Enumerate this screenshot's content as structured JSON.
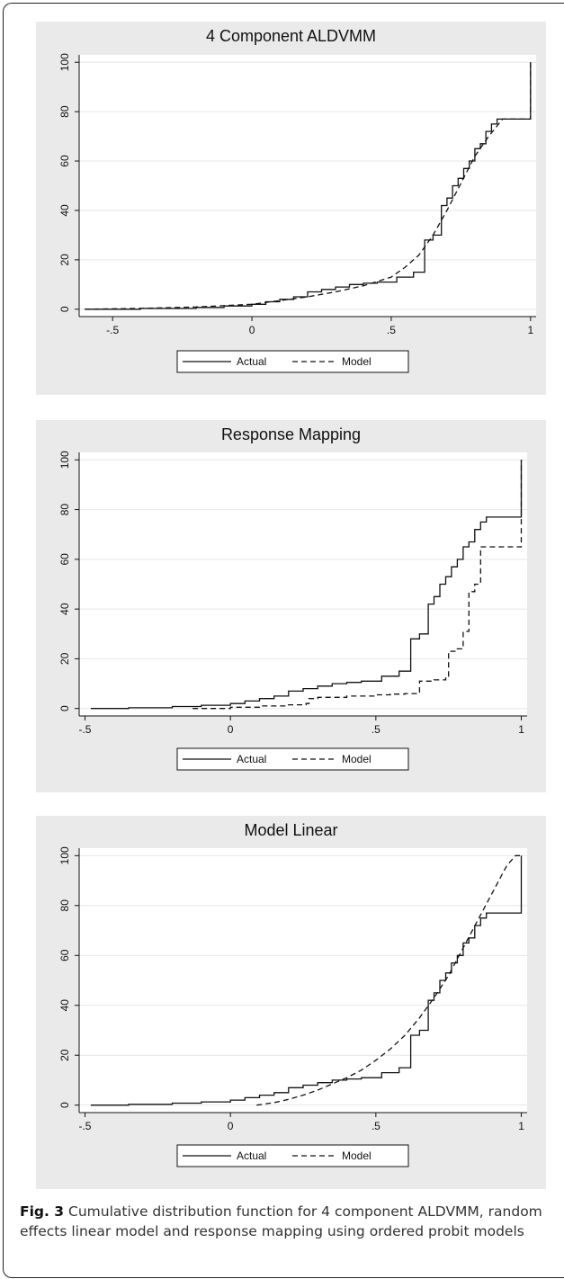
{
  "figure": {
    "caption_label": "Fig. 3",
    "caption_text": "Cumulative distribution function for 4 component ALDVMM, random effects linear model and response mapping using ordered probit models"
  },
  "chart_data": [
    {
      "type": "line",
      "title": "4 Component ALDVMM",
      "xlabel": "",
      "ylabel": "",
      "xlim": [
        -0.62,
        1.02
      ],
      "ylim": [
        -3,
        103
      ],
      "xticks": [
        -0.5,
        0,
        0.5,
        1
      ],
      "xtick_labels": [
        "-.5",
        "0",
        ".5",
        "1"
      ],
      "yticks": [
        0,
        20,
        40,
        60,
        80,
        100
      ],
      "ytick_labels": [
        "0",
        "20",
        "40",
        "60",
        "80",
        "100"
      ],
      "grid": "horizontal",
      "legend": {
        "placement": "bottom"
      },
      "series": [
        {
          "name": "Actual",
          "style": "solid",
          "step": true,
          "x": [
            -0.6,
            -0.4,
            -0.2,
            -0.1,
            0.0,
            0.05,
            0.1,
            0.15,
            0.2,
            0.25,
            0.3,
            0.35,
            0.4,
            0.45,
            0.5,
            0.52,
            0.58,
            0.6,
            0.62,
            0.65,
            0.68,
            0.7,
            0.72,
            0.74,
            0.76,
            0.78,
            0.8,
            0.82,
            0.84,
            0.86,
            0.88,
            0.9,
            1.0,
            1.0
          ],
          "y": [
            0,
            0.3,
            0.7,
            1.3,
            2,
            3,
            4,
            5,
            7,
            8,
            9,
            10,
            10.5,
            11,
            11,
            13,
            15,
            15,
            28,
            30,
            42,
            45,
            50,
            53,
            57,
            60,
            65,
            67,
            72,
            75,
            77,
            77,
            77,
            100
          ]
        },
        {
          "name": "Model",
          "style": "dashed",
          "step": false,
          "x": [
            -0.6,
            -0.4,
            -0.2,
            0.0,
            0.1,
            0.2,
            0.3,
            0.4,
            0.5,
            0.55,
            0.6,
            0.65,
            0.7,
            0.75,
            0.8,
            0.85,
            0.9,
            1.0,
            1.0
          ],
          "y": [
            0,
            0.3,
            0.9,
            2,
            3.5,
            5,
            7,
            9.5,
            13,
            17,
            22,
            30,
            40,
            51,
            62,
            70,
            77,
            77,
            100
          ]
        }
      ]
    },
    {
      "type": "line",
      "title": "Response Mapping",
      "xlabel": "",
      "ylabel": "",
      "xlim": [
        -0.52,
        1.02
      ],
      "ylim": [
        -3,
        103
      ],
      "xticks": [
        -0.5,
        0,
        0.5,
        1
      ],
      "xtick_labels": [
        "-.5",
        "0",
        ".5",
        "1"
      ],
      "yticks": [
        0,
        20,
        40,
        60,
        80,
        100
      ],
      "ytick_labels": [
        "0",
        "20",
        "40",
        "60",
        "80",
        "100"
      ],
      "grid": "horizontal",
      "legend": {
        "placement": "bottom"
      },
      "series": [
        {
          "name": "Actual",
          "style": "solid",
          "step": true,
          "x": [
            -0.48,
            -0.35,
            -0.2,
            -0.1,
            0.0,
            0.05,
            0.1,
            0.15,
            0.2,
            0.25,
            0.3,
            0.35,
            0.4,
            0.45,
            0.5,
            0.52,
            0.58,
            0.6,
            0.62,
            0.65,
            0.68,
            0.7,
            0.72,
            0.74,
            0.76,
            0.78,
            0.8,
            0.82,
            0.84,
            0.86,
            0.88,
            0.9,
            1.0,
            1.0
          ],
          "y": [
            0,
            0.3,
            0.8,
            1.3,
            2,
            3,
            4,
            5,
            7,
            8,
            9,
            10,
            10.5,
            11,
            11,
            13,
            15,
            15,
            28,
            30,
            42,
            45,
            50,
            53,
            57,
            60,
            65,
            67,
            72,
            75,
            77,
            77,
            77,
            100
          ]
        },
        {
          "name": "Model",
          "style": "dashed",
          "step": true,
          "x": [
            -0.13,
            0.0,
            0.1,
            0.2,
            0.26,
            0.27,
            0.3,
            0.4,
            0.5,
            0.55,
            0.6,
            0.64,
            0.65,
            0.7,
            0.74,
            0.75,
            0.78,
            0.8,
            0.82,
            0.84,
            0.86,
            1.0,
            1.0
          ],
          "y": [
            0,
            0.5,
            1,
            1.5,
            2,
            4,
            4.5,
            5,
            5.5,
            5.8,
            6,
            6,
            11,
            11.5,
            13,
            23,
            24,
            31,
            47,
            50,
            65,
            65,
            100
          ]
        }
      ]
    },
    {
      "type": "line",
      "title": "Model Linear",
      "xlabel": "",
      "ylabel": "",
      "xlim": [
        -0.52,
        1.02
      ],
      "ylim": [
        -3,
        103
      ],
      "xticks": [
        -0.5,
        0,
        0.5,
        1
      ],
      "xtick_labels": [
        "-.5",
        "0",
        ".5",
        "1"
      ],
      "yticks": [
        0,
        20,
        40,
        60,
        80,
        100
      ],
      "ytick_labels": [
        "0",
        "20",
        "40",
        "60",
        "80",
        "100"
      ],
      "grid": "horizontal",
      "legend": {
        "placement": "bottom"
      },
      "series": [
        {
          "name": "Actual",
          "style": "solid",
          "step": true,
          "x": [
            -0.48,
            -0.35,
            -0.2,
            -0.1,
            0.0,
            0.05,
            0.1,
            0.15,
            0.2,
            0.25,
            0.3,
            0.35,
            0.4,
            0.45,
            0.5,
            0.52,
            0.58,
            0.6,
            0.62,
            0.65,
            0.68,
            0.7,
            0.72,
            0.74,
            0.76,
            0.78,
            0.8,
            0.82,
            0.84,
            0.86,
            0.88,
            0.9,
            1.0,
            1.0
          ],
          "y": [
            0,
            0.3,
            0.8,
            1.3,
            2,
            3,
            4,
            5,
            7,
            8,
            9,
            10,
            10.5,
            11,
            11,
            13,
            15,
            15,
            28,
            30,
            42,
            45,
            50,
            53,
            57,
            60,
            65,
            67,
            72,
            75,
            77,
            77,
            77,
            100
          ]
        },
        {
          "name": "Model",
          "style": "dashed",
          "step": false,
          "x": [
            0.09,
            0.15,
            0.2,
            0.25,
            0.3,
            0.35,
            0.4,
            0.45,
            0.5,
            0.55,
            0.6,
            0.65,
            0.7,
            0.75,
            0.8,
            0.85,
            0.9,
            0.95,
            0.98,
            1.0
          ],
          "y": [
            0,
            1,
            2.3,
            4,
            6,
            8.5,
            11,
            14,
            18,
            22.5,
            28,
            35,
            43,
            52,
            63,
            74,
            85,
            96,
            100,
            100
          ]
        }
      ]
    }
  ]
}
